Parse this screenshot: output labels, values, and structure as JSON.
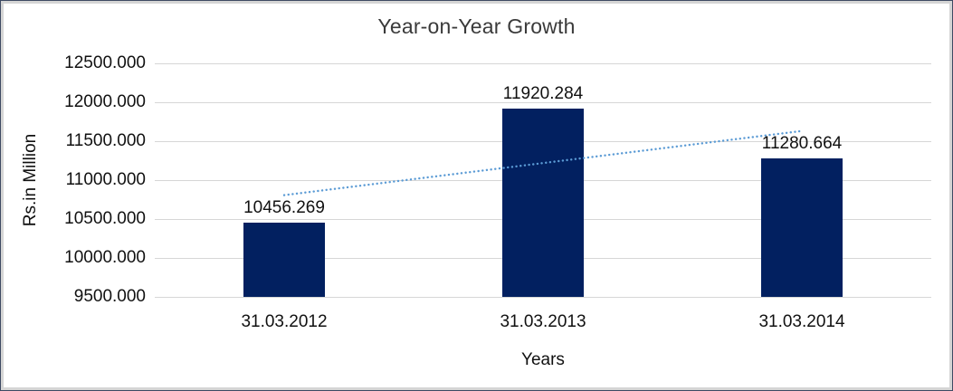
{
  "chart_data": {
    "type": "bar",
    "title": "Year-on-Year Growth",
    "xlabel": "Years",
    "ylabel": "Rs.in Million",
    "categories": [
      "31.03.2012",
      "31.03.2013",
      "31.03.2014"
    ],
    "values": [
      10456.269,
      11920.284,
      11280.664
    ],
    "data_labels": [
      "10456.269",
      "11920.284",
      "11280.664"
    ],
    "ylim": [
      9500,
      12500
    ],
    "yticks": [
      9500,
      10000,
      10500,
      11000,
      11500,
      12000,
      12500
    ],
    "ytick_labels": [
      "9500.000",
      "10000.000",
      "10500.000",
      "11000.000",
      "11500.000",
      "12000.000",
      "12500.000"
    ],
    "grid": "horizontal",
    "legend": "none",
    "trendline": {
      "type": "linear",
      "style": "dotted"
    },
    "colors": {
      "bar": "#022060",
      "trendline": "#5B9BD5",
      "gridline": "#D6D6D6",
      "text": "#111111",
      "title_text": "#3A3A3A",
      "background": "#FFFFFF",
      "frame_border": "#D5D5D5"
    }
  }
}
